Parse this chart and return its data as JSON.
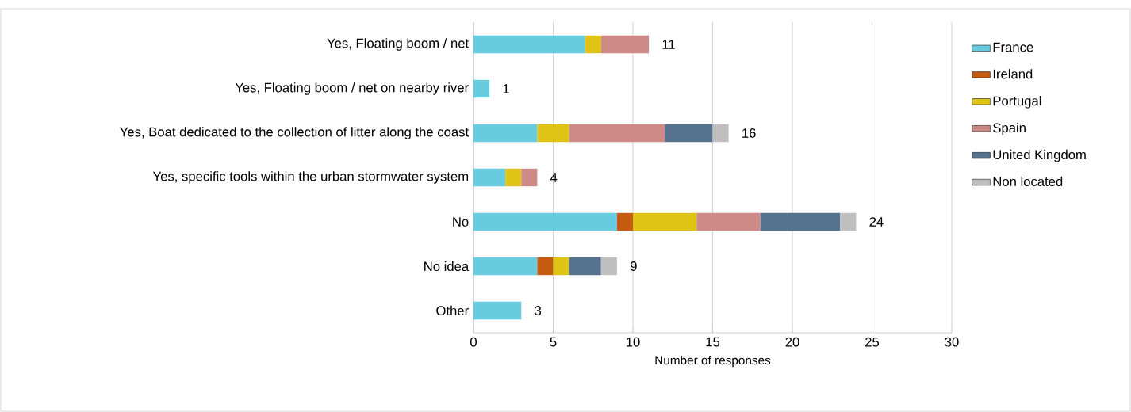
{
  "chart_data": {
    "type": "bar",
    "orientation": "horizontal",
    "stacked": true,
    "xlabel": "Number of responses",
    "categories": [
      "Yes, Floating boom / net",
      "Yes, Floating boom / net on nearby river",
      "Yes, Boat dedicated to the collection of litter along the coast",
      "Yes, specific tools within the urban stormwater system",
      "No",
      "No idea",
      "Other"
    ],
    "series": [
      {
        "name": "France",
        "color": "#68cce0",
        "values": [
          7,
          1,
          4,
          2,
          9,
          4,
          3
        ]
      },
      {
        "name": "Ireland",
        "color": "#c55a11",
        "values": [
          null,
          null,
          null,
          null,
          1,
          1,
          null
        ]
      },
      {
        "name": "Portugal",
        "color": "#dfc417",
        "values": [
          1,
          null,
          2,
          1,
          4,
          1,
          null
        ]
      },
      {
        "name": "Spain",
        "color": "#cd8a86",
        "values": [
          3,
          null,
          6,
          1,
          4,
          null,
          null
        ]
      },
      {
        "name": "United Kingdom",
        "color": "#56728f",
        "values": [
          null,
          null,
          3,
          null,
          5,
          2,
          null
        ]
      },
      {
        "name": "Non located",
        "color": "#bfbfbf",
        "values": [
          null,
          null,
          1,
          null,
          1,
          1,
          null
        ]
      }
    ],
    "totals": [
      "11",
      "1",
      "16",
      "4",
      "24",
      "9",
      "3"
    ],
    "xlim": [
      0,
      30
    ],
    "xticks": [
      0,
      5,
      10,
      15,
      20,
      25,
      30
    ],
    "grid": "x",
    "legend": "right"
  }
}
